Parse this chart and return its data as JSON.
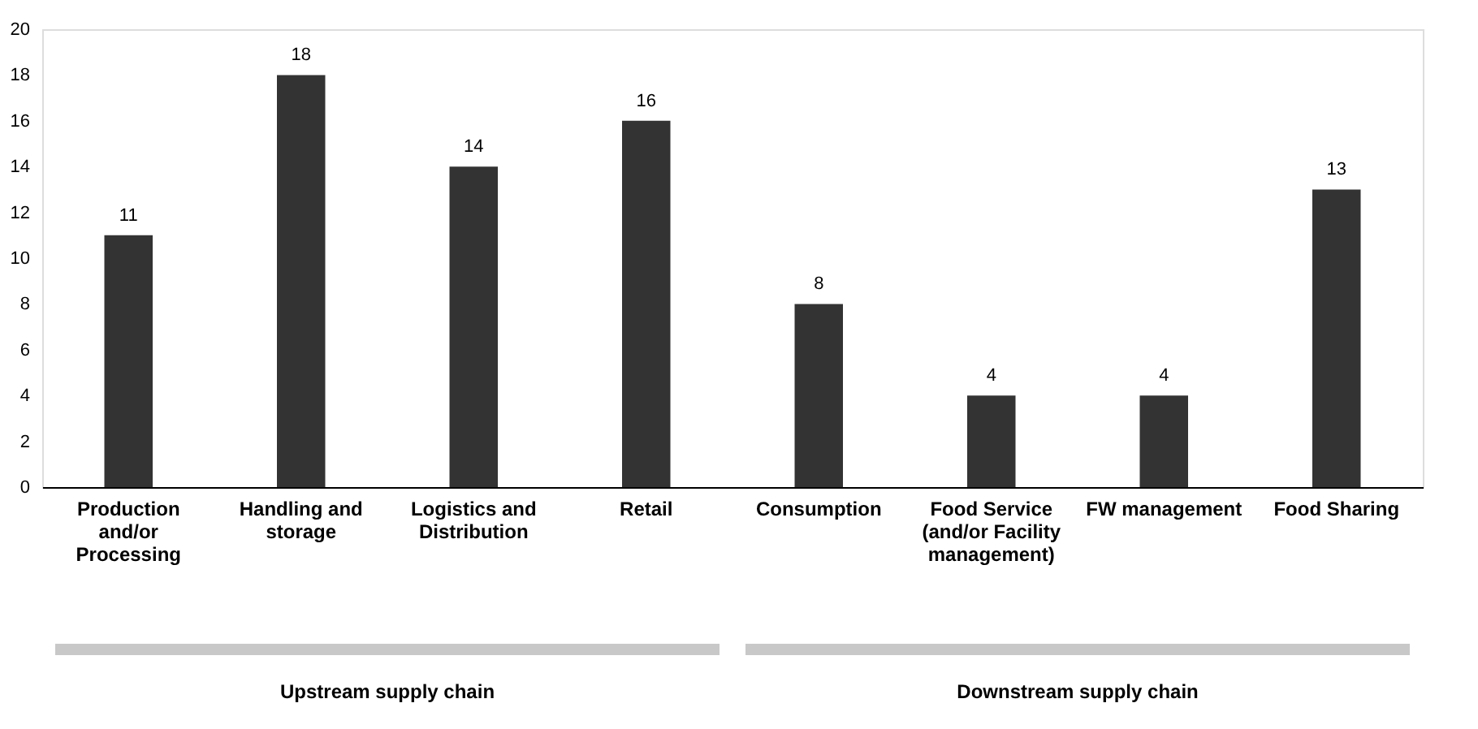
{
  "chart_data": {
    "type": "bar",
    "categories": [
      "Production and/or Processing",
      "Handling and storage",
      "Logistics and Distribution",
      "Retail",
      "Consumption",
      "Food Service (and/or Facility management)",
      "FW management",
      "Food Sharing"
    ],
    "values": [
      11,
      18,
      14,
      16,
      8,
      4,
      4,
      13
    ],
    "color": "#333333",
    "ylim": [
      0,
      20
    ],
    "yticks": [
      0,
      2,
      4,
      6,
      8,
      10,
      12,
      14,
      16,
      18,
      20
    ],
    "grid": false,
    "data_labels": true,
    "annotations": [
      "Upstream supply chain",
      "Downstream supply chain"
    ]
  }
}
